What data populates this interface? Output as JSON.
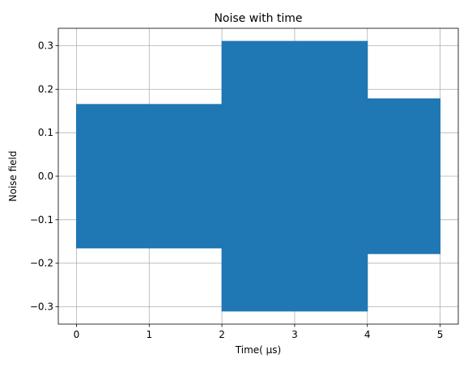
{
  "chart_data": {
    "type": "area",
    "title": "Noise with time",
    "xlabel": "Time( μs)",
    "ylabel": "Noise field",
    "xlim": [
      -0.25,
      5.25
    ],
    "ylim": [
      -0.34,
      0.34
    ],
    "xticks": [
      0,
      1,
      2,
      3,
      4,
      5
    ],
    "yticks": [
      -0.3,
      -0.2,
      -0.1,
      0.0,
      0.1,
      0.2,
      0.3
    ],
    "xtick_labels": [
      "0",
      "1",
      "2",
      "3",
      "4",
      "5"
    ],
    "ytick_labels": [
      "−0.3",
      "−0.2",
      "−0.1",
      "0.0",
      "0.1",
      "0.2",
      "0.3"
    ],
    "grid": true,
    "series": [
      {
        "color": "#1f77b4",
        "segments": [
          {
            "x_start": 0,
            "x_end": 2,
            "amplitude": 0.165
          },
          {
            "x_start": 2,
            "x_end": 4,
            "amplitude": 0.31
          },
          {
            "x_start": 4,
            "x_end": 5,
            "amplitude": 0.178
          }
        ]
      }
    ]
  }
}
